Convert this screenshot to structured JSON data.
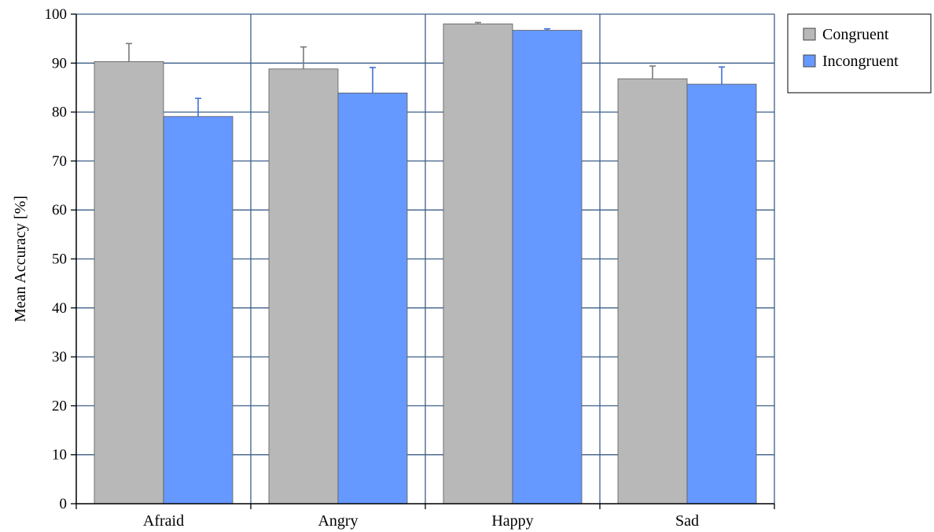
{
  "chart_data": {
    "type": "bar",
    "title": "",
    "xlabel": "",
    "ylabel": "Mean Accuracy  [%]",
    "ylim": [
      0,
      100
    ],
    "yticks": [
      0,
      10,
      20,
      30,
      40,
      50,
      60,
      70,
      80,
      90,
      100
    ],
    "categories": [
      "Afraid",
      "Angry",
      "Happy",
      "Sad"
    ],
    "grid": true,
    "legend_position": "top-right, outside plot",
    "series": [
      {
        "name": "Congruent",
        "color": "#b8b8b8",
        "values": [
          90.3,
          88.8,
          98.0,
          86.8
        ],
        "error_upper": [
          94.0,
          93.3,
          98.3,
          89.4
        ]
      },
      {
        "name": "Incongruent",
        "color": "#6699ff",
        "values": [
          79.1,
          83.9,
          96.7,
          85.7
        ],
        "error_upper": [
          82.8,
          89.1,
          97.0,
          89.2
        ]
      }
    ]
  }
}
